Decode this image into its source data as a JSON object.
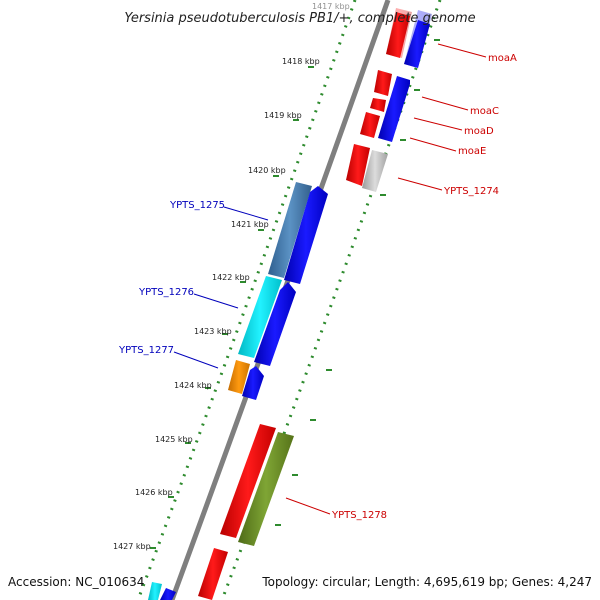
{
  "title": "Yersinia pseudotuberculosis PB1/+, complete genome",
  "accession": "Accession: NC_010634",
  "topology": "Topology: circular; Length: 4,695,619 bp; Genes: 4,247",
  "ticks": [
    {
      "label": "1417 kbp"
    },
    {
      "label": "1418 kbp"
    },
    {
      "label": "1419 kbp"
    },
    {
      "label": "1420 kbp"
    },
    {
      "label": "1421 kbp"
    },
    {
      "label": "1422 kbp"
    },
    {
      "label": "1423 kbp"
    },
    {
      "label": "1424 kbp"
    },
    {
      "label": "1425 kbp"
    },
    {
      "label": "1426 kbp"
    },
    {
      "label": "1427 kbp"
    }
  ],
  "gene_labels": {
    "moaA": "moaA",
    "moaC": "moaC",
    "moaD": "moaD",
    "moaE": "moaE",
    "ypts1274": "YPTS_1274",
    "ypts1275": "YPTS_1275",
    "ypts1276": "YPTS_1276",
    "ypts1277": "YPTS_1277",
    "ypts1278": "YPTS_1278"
  },
  "colors": {
    "backbone": "#7f7f7f",
    "ring_dots": "#2e8b2e",
    "plus_label": "#cc0000",
    "minus_label": "#0000bb",
    "cds_red": "#e00000",
    "cds_blue": "#0000ee",
    "cds_steel": "#4a7fb0",
    "cds_cyan": "#00e5ee",
    "cds_orange": "#f08c00",
    "cds_green": "#6b8e23",
    "cds_grey": "#bdbdbd"
  }
}
